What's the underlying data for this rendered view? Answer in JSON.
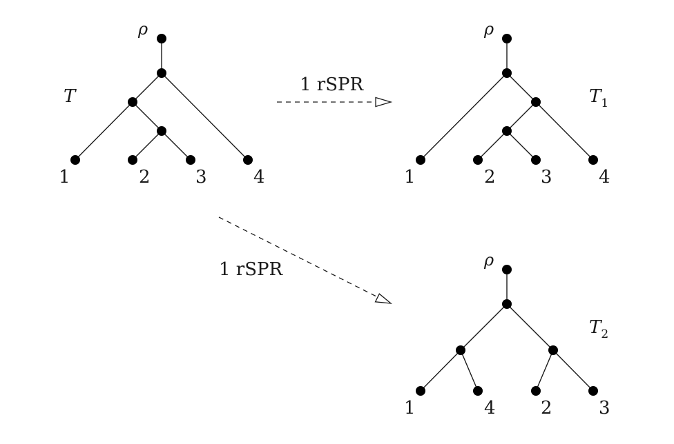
{
  "trees": [
    {
      "name": "T",
      "subscript": "",
      "root_label": "ρ",
      "leaves": [
        "1",
        "2",
        "3",
        "4"
      ]
    },
    {
      "name": "T",
      "subscript": "1",
      "root_label": "ρ",
      "leaves": [
        "1",
        "2",
        "3",
        "4"
      ]
    },
    {
      "name": "T",
      "subscript": "2",
      "root_label": "ρ",
      "leaves": [
        "1",
        "4",
        "2",
        "3"
      ]
    }
  ],
  "arrows": [
    {
      "label": "1 rSPR"
    },
    {
      "label": "1 rSPR"
    }
  ]
}
